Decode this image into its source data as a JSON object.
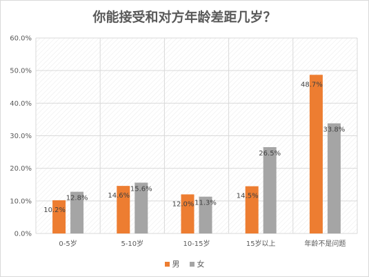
{
  "chart_data": {
    "type": "bar",
    "title": "你能接受和对方年龄差距几岁？",
    "categories": [
      "0-5岁",
      "5-10岁",
      "10-15岁",
      "15岁以上",
      "年龄不是问题"
    ],
    "series": [
      {
        "name": "男",
        "color": "#ed7d31",
        "values": [
          10.2,
          14.6,
          12.0,
          14.5,
          48.7
        ],
        "labels": [
          "10.2%",
          "14.6%",
          "12.0%",
          "14.5%",
          "48.7%"
        ]
      },
      {
        "name": "女",
        "color": "#a5a5a5",
        "values": [
          12.8,
          15.6,
          11.3,
          26.5,
          33.8
        ],
        "labels": [
          "12.8%",
          "15.6%",
          "11.3%",
          "26.5%",
          "33.8%"
        ]
      }
    ],
    "y_ticks": [
      "0.0%",
      "10.0%",
      "20.0%",
      "30.0%",
      "40.0%",
      "50.0%",
      "60.0%"
    ],
    "ylim": [
      0,
      60
    ],
    "grid": true,
    "legend_position": "bottom"
  }
}
